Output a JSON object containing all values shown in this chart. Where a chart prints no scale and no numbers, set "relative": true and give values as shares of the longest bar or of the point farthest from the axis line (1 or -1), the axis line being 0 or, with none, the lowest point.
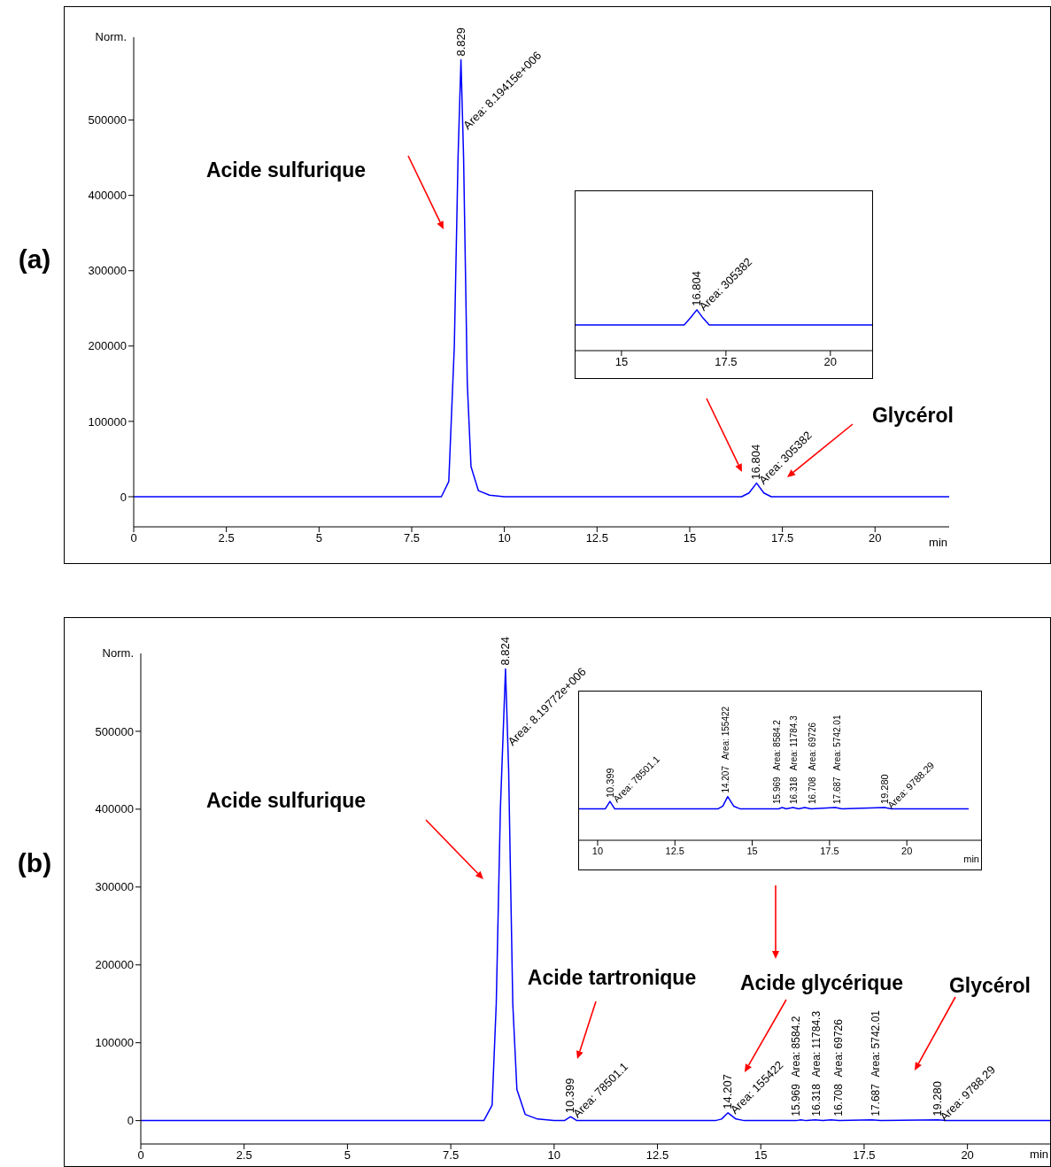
{
  "chart_data": [
    {
      "type": "line",
      "title": "(a)",
      "xlabel": "min",
      "ylabel": "Norm.",
      "xlim": [
        0,
        22
      ],
      "ylim": [
        -40000,
        610000
      ],
      "xticks": [
        0,
        2.5,
        5,
        7.5,
        10,
        12.5,
        15,
        17.5,
        20
      ],
      "yticks": [
        0,
        100000,
        200000,
        300000,
        400000,
        500000
      ],
      "series": [
        {
          "color": "#0000ff",
          "x": [
            0,
            7.5,
            8.3,
            8.5,
            8.65,
            8.75,
            8.829,
            8.9,
            9.0,
            9.1,
            9.3,
            9.6,
            10,
            16.4,
            16.6,
            16.804,
            17.0,
            17.2,
            22
          ],
          "values": [
            0,
            0,
            0,
            20000,
            200000,
            450000,
            580000,
            450000,
            150000,
            40000,
            8000,
            2000,
            0,
            0,
            5000,
            18000,
            5000,
            0,
            0
          ]
        }
      ],
      "annotations": [
        "Acide sulfurique",
        "Glycérol",
        {
          "text": "8.829",
          "x": 8.829,
          "y": 580000
        },
        {
          "text": "Area: 8.19415e+006",
          "x": 8.829,
          "y": 580000
        },
        {
          "text": "16.804",
          "x": 16.804,
          "y": 18000
        },
        {
          "text": "Area: 305382",
          "x": 16.804,
          "y": 18000
        }
      ]
    },
    {
      "type": "line",
      "relative": true,
      "tick_labels": "x",
      "xlim": [
        13.9,
        21
      ],
      "xticks": [
        15,
        17.5,
        20
      ],
      "series": [
        {
          "color": "#0000ff",
          "x": [
            13.9,
            16.5,
            16.65,
            16.804,
            16.95,
            17.1,
            21
          ],
          "values": [
            0.63,
            0.63,
            0.8,
            1,
            0.8,
            0.63,
            0.63
          ]
        }
      ],
      "annotations": [
        {
          "text": "16.804",
          "x": 16.804,
          "y": 1
        },
        {
          "text": "Area: 305382",
          "x": 16.804,
          "y": 1
        }
      ]
    },
    {
      "type": "line",
      "title": "(b)",
      "xlabel": "min",
      "ylabel": "Norm.",
      "xlim": [
        0,
        22
      ],
      "ylim": [
        -30000,
        600000
      ],
      "xticks": [
        0,
        2.5,
        5,
        7.5,
        10,
        12.5,
        15,
        17.5,
        20
      ],
      "yticks": [
        0,
        100000,
        200000,
        300000,
        400000,
        500000
      ],
      "series": [
        {
          "color": "#0000ff",
          "x": [
            0,
            7.5,
            8.3,
            8.5,
            8.6,
            8.7,
            8.824,
            8.9,
            9.0,
            9.1,
            9.3,
            9.6,
            10,
            10.25,
            10.399,
            10.55,
            13.9,
            14.05,
            14.207,
            14.4,
            14.6,
            15.85,
            15.969,
            16.1,
            16.318,
            16.5,
            16.7,
            16.9,
            17.687,
            17.9,
            19.28,
            19.5,
            22
          ],
          "values": [
            0,
            0,
            0,
            20000,
            150000,
            400000,
            580000,
            450000,
            150000,
            40000,
            8000,
            2000,
            0,
            0,
            5000,
            0,
            0,
            2000,
            10000,
            2000,
            0,
            0,
            1000,
            0,
            1000,
            0,
            1000,
            0,
            1000,
            0,
            1000,
            0,
            0
          ]
        }
      ],
      "annotations": [
        "Acide sulfurique",
        "Acide tartronique",
        "Acide glycérique",
        "Glycérol",
        {
          "text": "8.824",
          "x": 8.824,
          "y": 580000
        },
        {
          "text": "Area: 8.19772e+006",
          "x": 8.824,
          "y": 580000
        },
        {
          "text": "10.399",
          "x": 10.399,
          "y": 5000
        },
        {
          "text": "Area: 78501.1",
          "x": 10.399,
          "y": 5000
        },
        {
          "text": "14.207",
          "x": 14.207,
          "y": 10000
        },
        {
          "text": "Area: 155422",
          "x": 14.207,
          "y": 10000
        },
        {
          "text": "15.969",
          "x": 15.969,
          "y": 1000
        },
        "Area: 8584.2",
        {
          "text": "16.318",
          "x": 16.318,
          "y": 1000
        },
        "Area: 11784.3",
        {
          "text": "16.708",
          "x": 16.7,
          "y": 1000
        },
        "Area: 69726",
        {
          "text": "17.687",
          "x": 17.687,
          "y": 1000
        },
        "Area: 5742.01",
        {
          "text": "19.280",
          "x": 19.28,
          "y": 1000
        },
        {
          "text": "Area: 9788.29",
          "x": 19.28,
          "y": 1000
        }
      ]
    },
    {
      "type": "line",
      "relative": true,
      "tick_labels": "x",
      "xlabel": "min",
      "xlim": [
        9.4,
        22.4
      ],
      "xticks": [
        10,
        12.5,
        15,
        17.5,
        20
      ],
      "series": [
        {
          "color": "#0000ff",
          "x": [
            9.4,
            10.25,
            10.399,
            10.55,
            13.9,
            14.05,
            14.207,
            14.4,
            14.6,
            15.85,
            15.969,
            16.1,
            16.318,
            16.5,
            16.7,
            16.9,
            17.687,
            17.9,
            19.28,
            19.5,
            22
          ],
          "values": [
            0.72,
            0.72,
            0.89,
            0.72,
            0.72,
            0.78,
            1,
            0.78,
            0.72,
            0.72,
            0.75,
            0.72,
            0.75,
            0.72,
            0.75,
            0.72,
            0.75,
            0.72,
            0.75,
            0.72,
            0.72
          ]
        }
      ],
      "annotations": [
        {
          "text": "10.399",
          "x": 10.399,
          "y": 0.89
        },
        {
          "text": "Area: 78501.1",
          "x": 10.399,
          "y": 0.89
        },
        {
          "text": "14.207",
          "x": 14.207,
          "y": 1
        },
        "Area: 155422",
        {
          "text": "15.969",
          "x": 15.969,
          "y": 0.75
        },
        "Area: 8584.2",
        {
          "text": "16.318",
          "x": 16.318,
          "y": 0.75
        },
        "Area: 11784.3",
        {
          "text": "16.708",
          "x": 16.7,
          "y": 0.75
        },
        "Area: 69726",
        {
          "text": "17.687",
          "x": 17.687,
          "y": 0.75
        },
        "Area: 5742.01",
        {
          "text": "19.280",
          "x": 19.28,
          "y": 0.75
        },
        {
          "text": "Area: 9788.29",
          "x": 19.28,
          "y": 0.75
        }
      ]
    }
  ]
}
